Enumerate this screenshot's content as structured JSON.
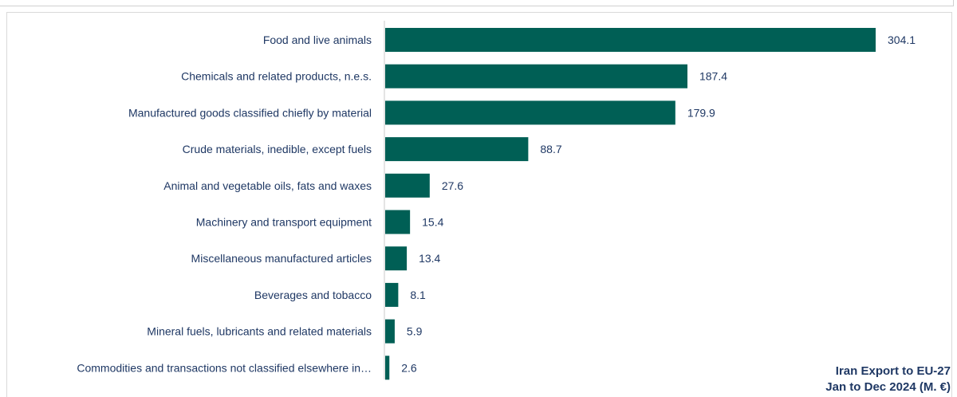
{
  "colors": {
    "bar": "#005f55",
    "text": "#1f3864",
    "axis": "#c8c8c8"
  },
  "chart_data": {
    "type": "bar",
    "orientation": "horizontal",
    "title": [
      "Iran Export to EU-27",
      "Jan to Dec 2024 (M. €)"
    ],
    "categories": [
      "Food and live animals",
      "Chemicals and related products, n.e.s.",
      "Manufactured goods classified chiefly by material",
      "Crude materials, inedible, except fuels",
      "Animal and vegetable oils, fats and waxes",
      "Machinery and transport equipment",
      "Miscellaneous manufactured articles",
      "Beverages and tobacco",
      "Mineral fuels, lubricants and related materials",
      "Commodities and transactions not classified elsewhere in…"
    ],
    "values": [
      304.1,
      187.4,
      179.9,
      88.7,
      27.6,
      15.4,
      13.4,
      8.1,
      5.9,
      2.6
    ],
    "value_labels": [
      "304.1",
      "187.4",
      "179.9",
      "88.7",
      "27.6",
      "15.4",
      "13.4",
      "8.1",
      "5.9",
      "2.6"
    ],
    "xlim": [
      0,
      325
    ],
    "grid": false,
    "legend": "none"
  }
}
